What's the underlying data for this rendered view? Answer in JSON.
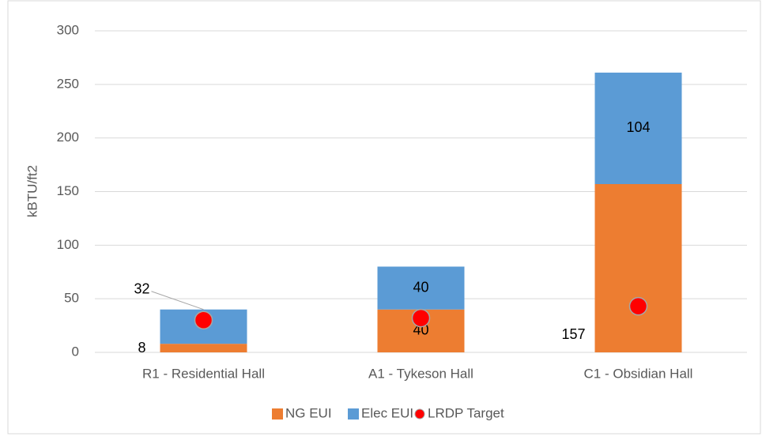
{
  "chart_data": {
    "type": "bar",
    "stacked": true,
    "y_label": "kBTU/ft2",
    "categories": [
      "R1 - Residential Hall",
      "A1 - Tykeson Hall",
      "C1 - Obsidian Hall"
    ],
    "series": [
      {
        "name": "NG EUI",
        "type": "bar",
        "color": "#ed7d31",
        "values": [
          8,
          40,
          157
        ]
      },
      {
        "name": "Elec EUI",
        "type": "bar",
        "color": "#5b9bd5",
        "values": [
          32,
          40,
          104
        ]
      },
      {
        "name": "LRDP Target",
        "type": "scatter",
        "color": "#ff0000",
        "values": [
          30,
          32,
          43
        ]
      }
    ],
    "ylim": [
      0,
      300
    ],
    "yticks": [
      0,
      50,
      100,
      150,
      200,
      250,
      300
    ],
    "grid": true,
    "legend": "bottom"
  }
}
